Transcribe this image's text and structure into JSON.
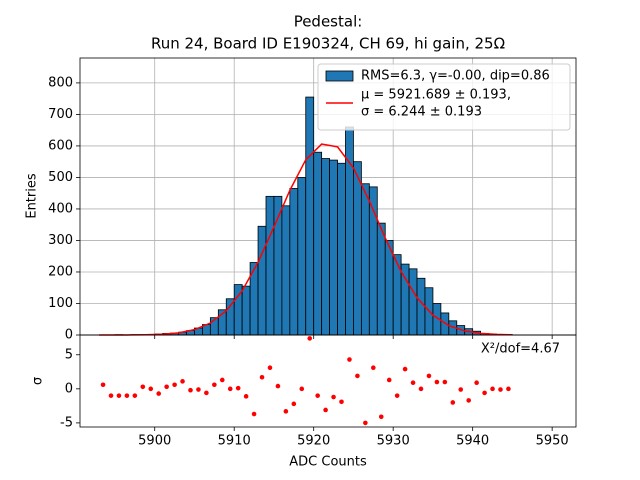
{
  "chart_data": [
    {
      "type": "histogram",
      "title": "Pedestal:",
      "subtitle": "Run 24, Board ID E190324, CH 69, hi gain, 25Ω",
      "ylabel": "Entries",
      "name": "RMS=6.3, γ=-0.00, dip=0.86",
      "color": "#1f77b4",
      "grid": true,
      "legend": "upper right",
      "bins": [
        5893,
        5894,
        5895,
        5896,
        5897,
        5898,
        5899,
        5900,
        5901,
        5902,
        5903,
        5904,
        5905,
        5906,
        5907,
        5908,
        5909,
        5910,
        5911,
        5912,
        5913,
        5914,
        5915,
        5916,
        5917,
        5918,
        5919,
        5920,
        5921,
        5922,
        5923,
        5924,
        5925,
        5926,
        5927,
        5928,
        5929,
        5930,
        5931,
        5932,
        5933,
        5934,
        5935,
        5936,
        5937,
        5938,
        5939,
        5940,
        5941,
        5942,
        5943,
        5944,
        5945
      ],
      "counts": [
        0,
        0,
        1,
        0,
        1,
        1,
        2,
        3,
        5,
        6,
        9,
        14,
        22,
        33,
        55,
        80,
        115,
        160,
        155,
        230,
        345,
        440,
        440,
        410,
        465,
        500,
        755,
        580,
        560,
        555,
        545,
        660,
        550,
        480,
        470,
        355,
        300,
        255,
        225,
        210,
        180,
        150,
        100,
        70,
        45,
        30,
        20,
        12,
        5,
        3,
        1,
        1
      ],
      "fit": {
        "name": [
          "μ = 5921.689 ± 0.193,",
          "σ = 6.244 ± 0.193"
        ],
        "color": "#ff0000",
        "x": [
          5893,
          5895,
          5897,
          5899,
          5901,
          5903,
          5905,
          5907,
          5909,
          5911,
          5913,
          5915,
          5917,
          5919,
          5921,
          5923,
          5925,
          5927,
          5929,
          5931,
          5933,
          5935,
          5937,
          5939,
          5941,
          5943,
          5945
        ],
        "values": [
          0,
          0.1,
          0.2,
          0.8,
          2.5,
          6.8,
          17,
          38,
          77,
          140,
          231,
          343,
          459,
          556,
          606,
          597,
          530,
          425,
          308,
          201,
          118,
          63,
          30,
          13,
          5.1,
          1.8,
          0.6
        ]
      },
      "xlim": [
        5890.6,
        5953
      ],
      "ylim": [
        0,
        879
      ],
      "xticks": [
        5900,
        5910,
        5920,
        5930,
        5940,
        5950
      ],
      "yticks": [
        0,
        100,
        200,
        300,
        400,
        500,
        600,
        700,
        800
      ]
    },
    {
      "type": "scatter",
      "xlabel": "ADC Counts",
      "ylabel": "σ",
      "annotation": "X²/dof=4.67",
      "color": "#ff0000",
      "grid": false,
      "values": [
        0.6,
        -1,
        -1,
        -1,
        -1,
        0.3,
        0,
        -0.7,
        0.3,
        0.6,
        1.1,
        -0.2,
        -0.1,
        -0.6,
        0.6,
        1.3,
        0,
        0.1,
        -1.1,
        -3.7,
        1.7,
        3.1,
        0.4,
        -3.3,
        -2.2,
        0,
        7.4,
        -1,
        -3.1,
        -1.2,
        -1.9,
        4.3,
        1.9,
        -5,
        3.1,
        -4.1,
        1.3,
        -1,
        2.9,
        0.9,
        0,
        1.9,
        1,
        1,
        -2,
        -0.1,
        -1.7,
        0.9,
        -0.6,
        0,
        -0.1,
        0
      ],
      "xlim": [
        5890.6,
        5953
      ],
      "ylim": [
        -5.6,
        7.9
      ],
      "xticks": [
        5900,
        5910,
        5920,
        5930,
        5940,
        5950
      ],
      "yticks": [
        -5,
        0,
        5
      ]
    }
  ]
}
